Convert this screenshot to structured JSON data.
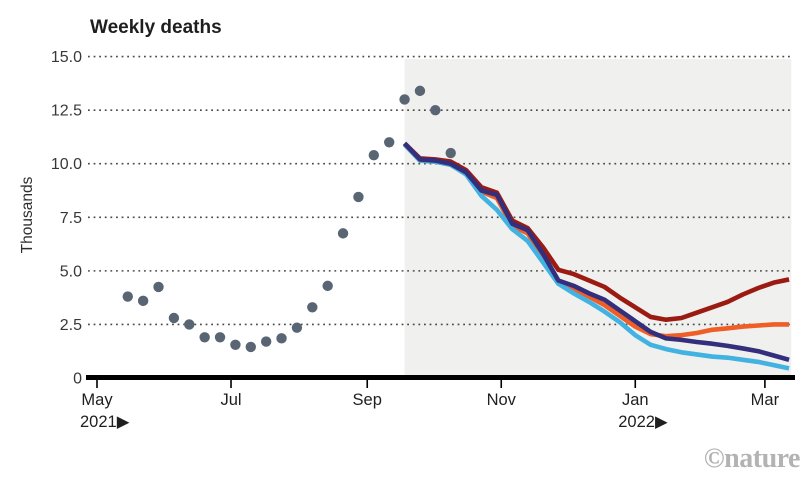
{
  "header": {
    "title": "Weekly deaths"
  },
  "axis": {
    "ylabel": "Thousands"
  },
  "footer": {
    "credit": "©nature"
  },
  "colors": {
    "observed_dot": "#5a6574",
    "scenario_dark_red": "#9b1b13",
    "scenario_orange": "#ee5e26",
    "scenario_cyan": "#41b2e2",
    "scenario_navy": "#332f7d",
    "forecast_shading": "#f0f0ef",
    "gridline": "#4a4a4a",
    "axis_line": "#000000"
  },
  "chart_data": {
    "type": "line",
    "title": "Weekly deaths",
    "xlabel": "",
    "ylabel": "Thousands",
    "ylim": [
      0,
      15
    ],
    "grid": "dotted horizontal",
    "legend": "none",
    "yticks": [
      0,
      2.5,
      5,
      7.5,
      10,
      12.5,
      15
    ],
    "ytick_labels": [
      "0",
      "2.5",
      "5.0",
      "7.5",
      "10.0",
      "12.5",
      "15.0"
    ],
    "x_unit": "days since 2021-05-01",
    "x_ticks": [
      {
        "day": 0,
        "label": "May",
        "sublabel": "2021▶"
      },
      {
        "day": 61,
        "label": "Jul"
      },
      {
        "day": 123,
        "label": "Sep"
      },
      {
        "day": 184,
        "label": "Nov"
      },
      {
        "day": 245,
        "label": "Jan",
        "sublabel": "2022▶"
      },
      {
        "day": 304,
        "label": "Mar"
      }
    ],
    "forecast_window": {
      "start_day": 140,
      "end_day": 316
    },
    "observed": {
      "name": "reported-weekly-deaths-dots",
      "color": "#5a6574",
      "start_day": 14,
      "step_days": 7,
      "values": [
        3.8,
        3.6,
        4.25,
        2.8,
        2.5,
        1.9,
        1.9,
        1.55,
        1.45,
        1.7,
        1.85,
        2.35,
        3.3,
        4.3,
        6.75,
        8.45,
        10.4,
        11.0,
        13.0,
        13.4,
        12.5,
        10.5
      ]
    },
    "series": [
      {
        "name": "projection-dark-red",
        "color": "#9b1b13",
        "start_day": 140,
        "step_days": 7,
        "values": [
          10.95,
          10.25,
          10.2,
          10.1,
          9.7,
          8.9,
          8.65,
          7.35,
          7.0,
          6.1,
          5.05,
          4.85,
          4.55,
          4.25,
          3.75,
          3.3,
          2.85,
          2.72,
          2.8,
          3.05,
          3.3,
          3.55,
          3.9,
          4.2,
          4.45,
          4.6
        ]
      },
      {
        "name": "projection-orange",
        "color": "#ee5e26",
        "start_day": 140,
        "step_days": 7,
        "values": [
          10.9,
          10.15,
          10.1,
          9.95,
          9.55,
          8.7,
          8.4,
          7.1,
          6.75,
          5.7,
          4.5,
          4.15,
          3.8,
          3.4,
          2.9,
          2.4,
          2.05,
          1.95,
          2.0,
          2.1,
          2.25,
          2.32,
          2.4,
          2.45,
          2.5,
          2.5
        ]
      },
      {
        "name": "projection-cyan",
        "color": "#41b2e2",
        "start_day": 140,
        "step_days": 7,
        "values": [
          10.9,
          10.15,
          10.1,
          9.95,
          9.5,
          8.5,
          7.85,
          6.95,
          6.4,
          5.4,
          4.4,
          3.95,
          3.55,
          3.1,
          2.6,
          2.0,
          1.55,
          1.35,
          1.2,
          1.1,
          1.0,
          0.95,
          0.85,
          0.75,
          0.6,
          0.45
        ]
      },
      {
        "name": "projection-navy",
        "color": "#332f7d",
        "start_day": 140,
        "step_days": 7,
        "values": [
          10.95,
          10.2,
          10.15,
          10.0,
          9.6,
          8.75,
          8.55,
          7.2,
          6.9,
          5.8,
          4.55,
          4.3,
          3.95,
          3.65,
          3.15,
          2.65,
          2.15,
          1.85,
          1.78,
          1.68,
          1.6,
          1.5,
          1.38,
          1.25,
          1.05,
          0.85
        ]
      }
    ]
  }
}
